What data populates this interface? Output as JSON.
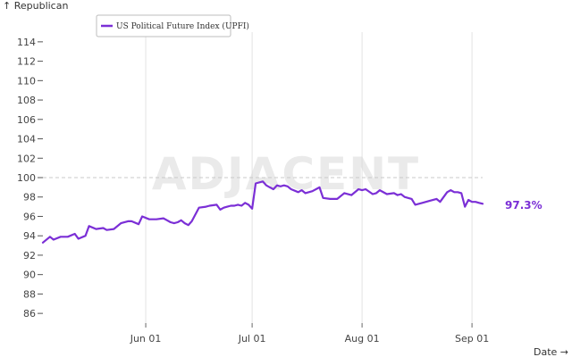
{
  "watermark": "ADJACENT",
  "chart_data": {
    "type": "line",
    "ylabel": "↑ Republican",
    "xlabel": "Date →",
    "ylim": [
      85,
      115
    ],
    "yticks": [
      86,
      88,
      90,
      92,
      94,
      96,
      98,
      100,
      102,
      104,
      106,
      108,
      110,
      112,
      114
    ],
    "xlim": [
      "2024-05-03",
      "2024-09-04"
    ],
    "xticks": [
      {
        "date": "2024-06-01",
        "label": "Jun 01"
      },
      {
        "date": "2024-07-01",
        "label": "Jul 01"
      },
      {
        "date": "2024-08-01",
        "label": "Aug 01"
      },
      {
        "date": "2024-09-01",
        "label": "Sep 01"
      }
    ],
    "reference_line": 100,
    "grid": "vertical",
    "legend_position": "top-left",
    "end_label": "97.3%",
    "series": [
      {
        "name": "US Political Future Index (UPFI)",
        "color": "#7b2fd6",
        "x": [
          "2024-05-03",
          "2024-05-05",
          "2024-05-06",
          "2024-05-08",
          "2024-05-10",
          "2024-05-12",
          "2024-05-13",
          "2024-05-15",
          "2024-05-16",
          "2024-05-18",
          "2024-05-20",
          "2024-05-21",
          "2024-05-23",
          "2024-05-25",
          "2024-05-27",
          "2024-05-28",
          "2024-05-30",
          "2024-05-31",
          "2024-06-02",
          "2024-06-04",
          "2024-06-06",
          "2024-06-07",
          "2024-06-08",
          "2024-06-09",
          "2024-06-10",
          "2024-06-11",
          "2024-06-12",
          "2024-06-13",
          "2024-06-14",
          "2024-06-16",
          "2024-06-18",
          "2024-06-19",
          "2024-06-21",
          "2024-06-22",
          "2024-06-23",
          "2024-06-24",
          "2024-06-25",
          "2024-06-26",
          "2024-06-27",
          "2024-06-28",
          "2024-06-29",
          "2024-06-30",
          "2024-07-01",
          "2024-07-02",
          "2024-07-04",
          "2024-07-05",
          "2024-07-06",
          "2024-07-07",
          "2024-07-08",
          "2024-07-09",
          "2024-07-10",
          "2024-07-11",
          "2024-07-12",
          "2024-07-14",
          "2024-07-15",
          "2024-07-16",
          "2024-07-18",
          "2024-07-20",
          "2024-07-21",
          "2024-07-23",
          "2024-07-25",
          "2024-07-27",
          "2024-07-29",
          "2024-07-31",
          "2024-08-01",
          "2024-08-02",
          "2024-08-04",
          "2024-08-05",
          "2024-08-06",
          "2024-08-08",
          "2024-08-10",
          "2024-08-11",
          "2024-08-12",
          "2024-08-13",
          "2024-08-15",
          "2024-08-16",
          "2024-08-18",
          "2024-08-20",
          "2024-08-22",
          "2024-08-23",
          "2024-08-25",
          "2024-08-26",
          "2024-08-27",
          "2024-08-28",
          "2024-08-29",
          "2024-08-30",
          "2024-08-31",
          "2024-09-01",
          "2024-09-02",
          "2024-09-03",
          "2024-09-04"
        ],
        "y": [
          93.3,
          93.9,
          93.6,
          93.9,
          93.9,
          94.2,
          93.7,
          94.0,
          95.0,
          94.7,
          94.8,
          94.6,
          94.7,
          95.3,
          95.5,
          95.5,
          95.2,
          96.0,
          95.7,
          95.7,
          95.8,
          95.6,
          95.4,
          95.3,
          95.4,
          95.6,
          95.3,
          95.1,
          95.5,
          96.9,
          97.0,
          97.1,
          97.2,
          96.7,
          96.9,
          97.0,
          97.1,
          97.1,
          97.2,
          97.1,
          97.4,
          97.2,
          96.8,
          99.4,
          99.6,
          99.2,
          99.0,
          98.8,
          99.2,
          99.1,
          99.2,
          99.1,
          98.8,
          98.5,
          98.7,
          98.4,
          98.6,
          99.0,
          97.9,
          97.8,
          97.8,
          98.4,
          98.2,
          98.8,
          98.7,
          98.8,
          98.3,
          98.4,
          98.7,
          98.3,
          98.4,
          98.2,
          98.3,
          98.0,
          97.8,
          97.2,
          97.4,
          97.6,
          97.8,
          97.5,
          98.5,
          98.7,
          98.5,
          98.5,
          98.4,
          97.0,
          97.7,
          97.5,
          97.5,
          97.4,
          97.3
        ]
      }
    ]
  }
}
